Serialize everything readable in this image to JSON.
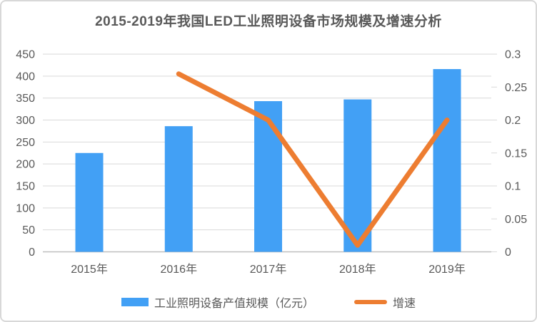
{
  "title": "2015-2019年我国LED工业照明设备市场规模及增速分析",
  "colors": {
    "bar": "#42A0F5",
    "line": "#ED7D31",
    "text": "#595959",
    "gridline": "#d9d9d9",
    "axis_line": "#bfbfbf",
    "frame_border": "#d8d8d8",
    "background": "#ffffff"
  },
  "chart_data": {
    "type": "bar",
    "subtype": "combo-bar-line",
    "title": "2015-2019年我国LED工业照明设备市场规模及增速分析",
    "categories": [
      "2015年",
      "2016年",
      "2017年",
      "2018年",
      "2019年"
    ],
    "series": [
      {
        "name": "工业照明设备产值规模（亿元）",
        "type": "bar",
        "axis": "left",
        "color": "#42A0F5",
        "values": [
          225,
          286,
          343,
          347,
          416
        ]
      },
      {
        "name": "增速",
        "type": "line",
        "axis": "right",
        "color": "#ED7D31",
        "values": [
          null,
          0.27,
          0.2,
          0.01,
          0.2
        ]
      }
    ],
    "left_axis": {
      "min": 0,
      "max": 450,
      "tick_step": 50,
      "ticks": [
        0,
        50,
        100,
        150,
        200,
        250,
        300,
        350,
        400,
        450
      ]
    },
    "right_axis": {
      "min": 0,
      "max": 0.3,
      "tick_step": 0.05,
      "ticks": [
        0,
        0.05,
        0.1,
        0.15,
        0.2,
        0.25,
        0.3
      ]
    },
    "grid": true,
    "legend_position": "bottom",
    "xlabel": "",
    "ylabel": ""
  },
  "legend": {
    "items": [
      {
        "label": "工业照明设备产值规模（亿元）",
        "color": "#42A0F5",
        "marker": "rect"
      },
      {
        "label": "增速",
        "color": "#ED7D31",
        "marker": "line"
      }
    ]
  }
}
